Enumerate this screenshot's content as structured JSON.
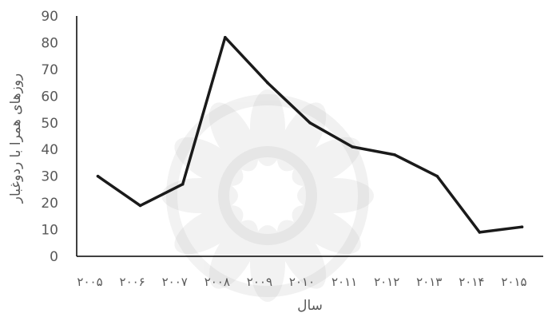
{
  "chart_data": {
    "type": "line",
    "title": "",
    "xlabel": "سال",
    "ylabel": "روزهای همرا با ردوغبار",
    "categories": [
      "۲۰۰۵",
      "۲۰۰۶",
      "۲۰۰۷",
      "۲۰۰۸",
      "۲۰۰۹",
      "۲۰۱۰",
      "۲۰۱۱",
      "۲۰۱۲",
      "۲۰۱۳",
      "۲۰۱۴",
      "۲۰۱۵"
    ],
    "values": [
      30,
      19,
      27,
      82,
      65,
      50,
      41,
      38,
      30,
      9,
      11
    ],
    "ylim": [
      0,
      90
    ],
    "yticks": [
      "0",
      "10",
      "20",
      "30",
      "40",
      "50",
      "60",
      "70",
      "80",
      "90"
    ],
    "grid": false,
    "legend": "none",
    "line_color": "#1a1a1a"
  }
}
